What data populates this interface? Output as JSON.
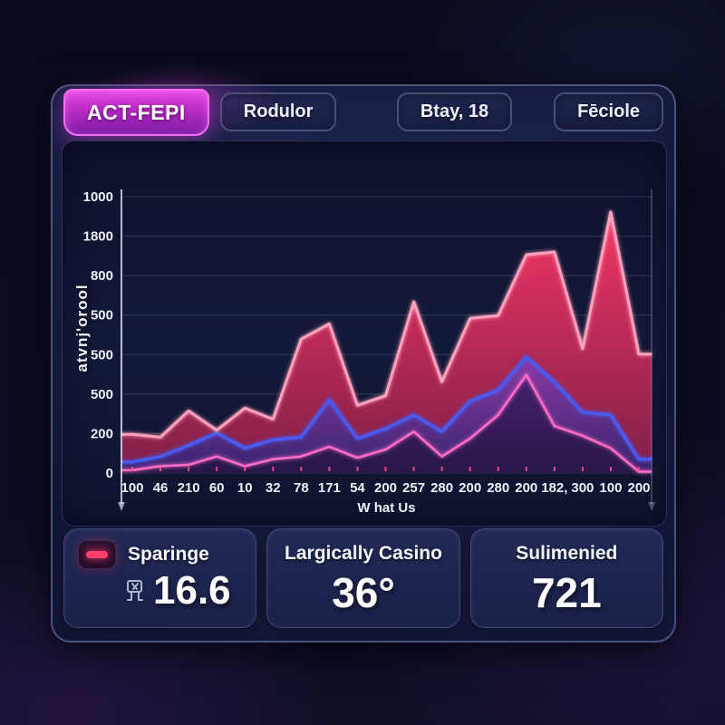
{
  "tabs": [
    {
      "label": "ACT-FEPI",
      "active": true
    },
    {
      "label": "Rodulor",
      "active": false
    },
    {
      "label": "Btay, 18",
      "active": false
    },
    {
      "label": "Fēciole",
      "active": false
    }
  ],
  "chart_data": {
    "type": "area",
    "title": "",
    "xlabel": "W hat Us",
    "ylabel": "atvnj'orool",
    "categories": [
      "100",
      "46",
      "210",
      "60",
      "10",
      "32",
      "78",
      "171",
      "54",
      "200",
      "257",
      "280",
      "200",
      "280",
      "200",
      "182,",
      "300",
      "100",
      "200"
    ],
    "y_tick_labels_top_to_bottom": [
      "1000",
      "1800",
      "800",
      "500",
      "500",
      "500",
      "200",
      "0"
    ],
    "ylim": [
      0,
      1000
    ],
    "grid": true,
    "legend": false,
    "series": [
      {
        "name": "red-area",
        "stroke": "#ffa0bd",
        "fill_top": "#f23563",
        "fill_bottom": "#7e1f48",
        "values": [
          140,
          130,
          225,
          155,
          235,
          195,
          485,
          540,
          245,
          280,
          620,
          330,
          560,
          570,
          790,
          800,
          450,
          945,
          430
        ]
      },
      {
        "name": "blue-line",
        "stroke": "#4c5aee",
        "fill_top": "#8a3aa6",
        "fill_bottom": "#38246e",
        "values": [
          40,
          60,
          100,
          145,
          90,
          120,
          130,
          265,
          125,
          160,
          210,
          150,
          260,
          300,
          420,
          330,
          220,
          210,
          50
        ]
      },
      {
        "name": "magenta-line",
        "stroke": "#ff6cc8",
        "fill_top": "#46216f",
        "fill_bottom": "#281747",
        "values": [
          10,
          25,
          30,
          60,
          25,
          50,
          60,
          95,
          55,
          85,
          150,
          60,
          125,
          210,
          355,
          170,
          135,
          90,
          5
        ]
      }
    ]
  },
  "stats": [
    {
      "label": "Sparinge",
      "value": "16.6"
    },
    {
      "label": "Largically Casino",
      "value": "36°"
    },
    {
      "label": "Sulimenied",
      "value": "721"
    }
  ],
  "colors": {
    "accent": "#e743e1",
    "tab_border": "#f46df2",
    "baseline": "#c33da4",
    "tick": "#ff4f9e",
    "grid": "rgba(170,185,225,0.22)",
    "axis": "rgba(225,230,250,0.8)",
    "text": "#eef1fa",
    "badge_bar": "#ff3f6e"
  }
}
